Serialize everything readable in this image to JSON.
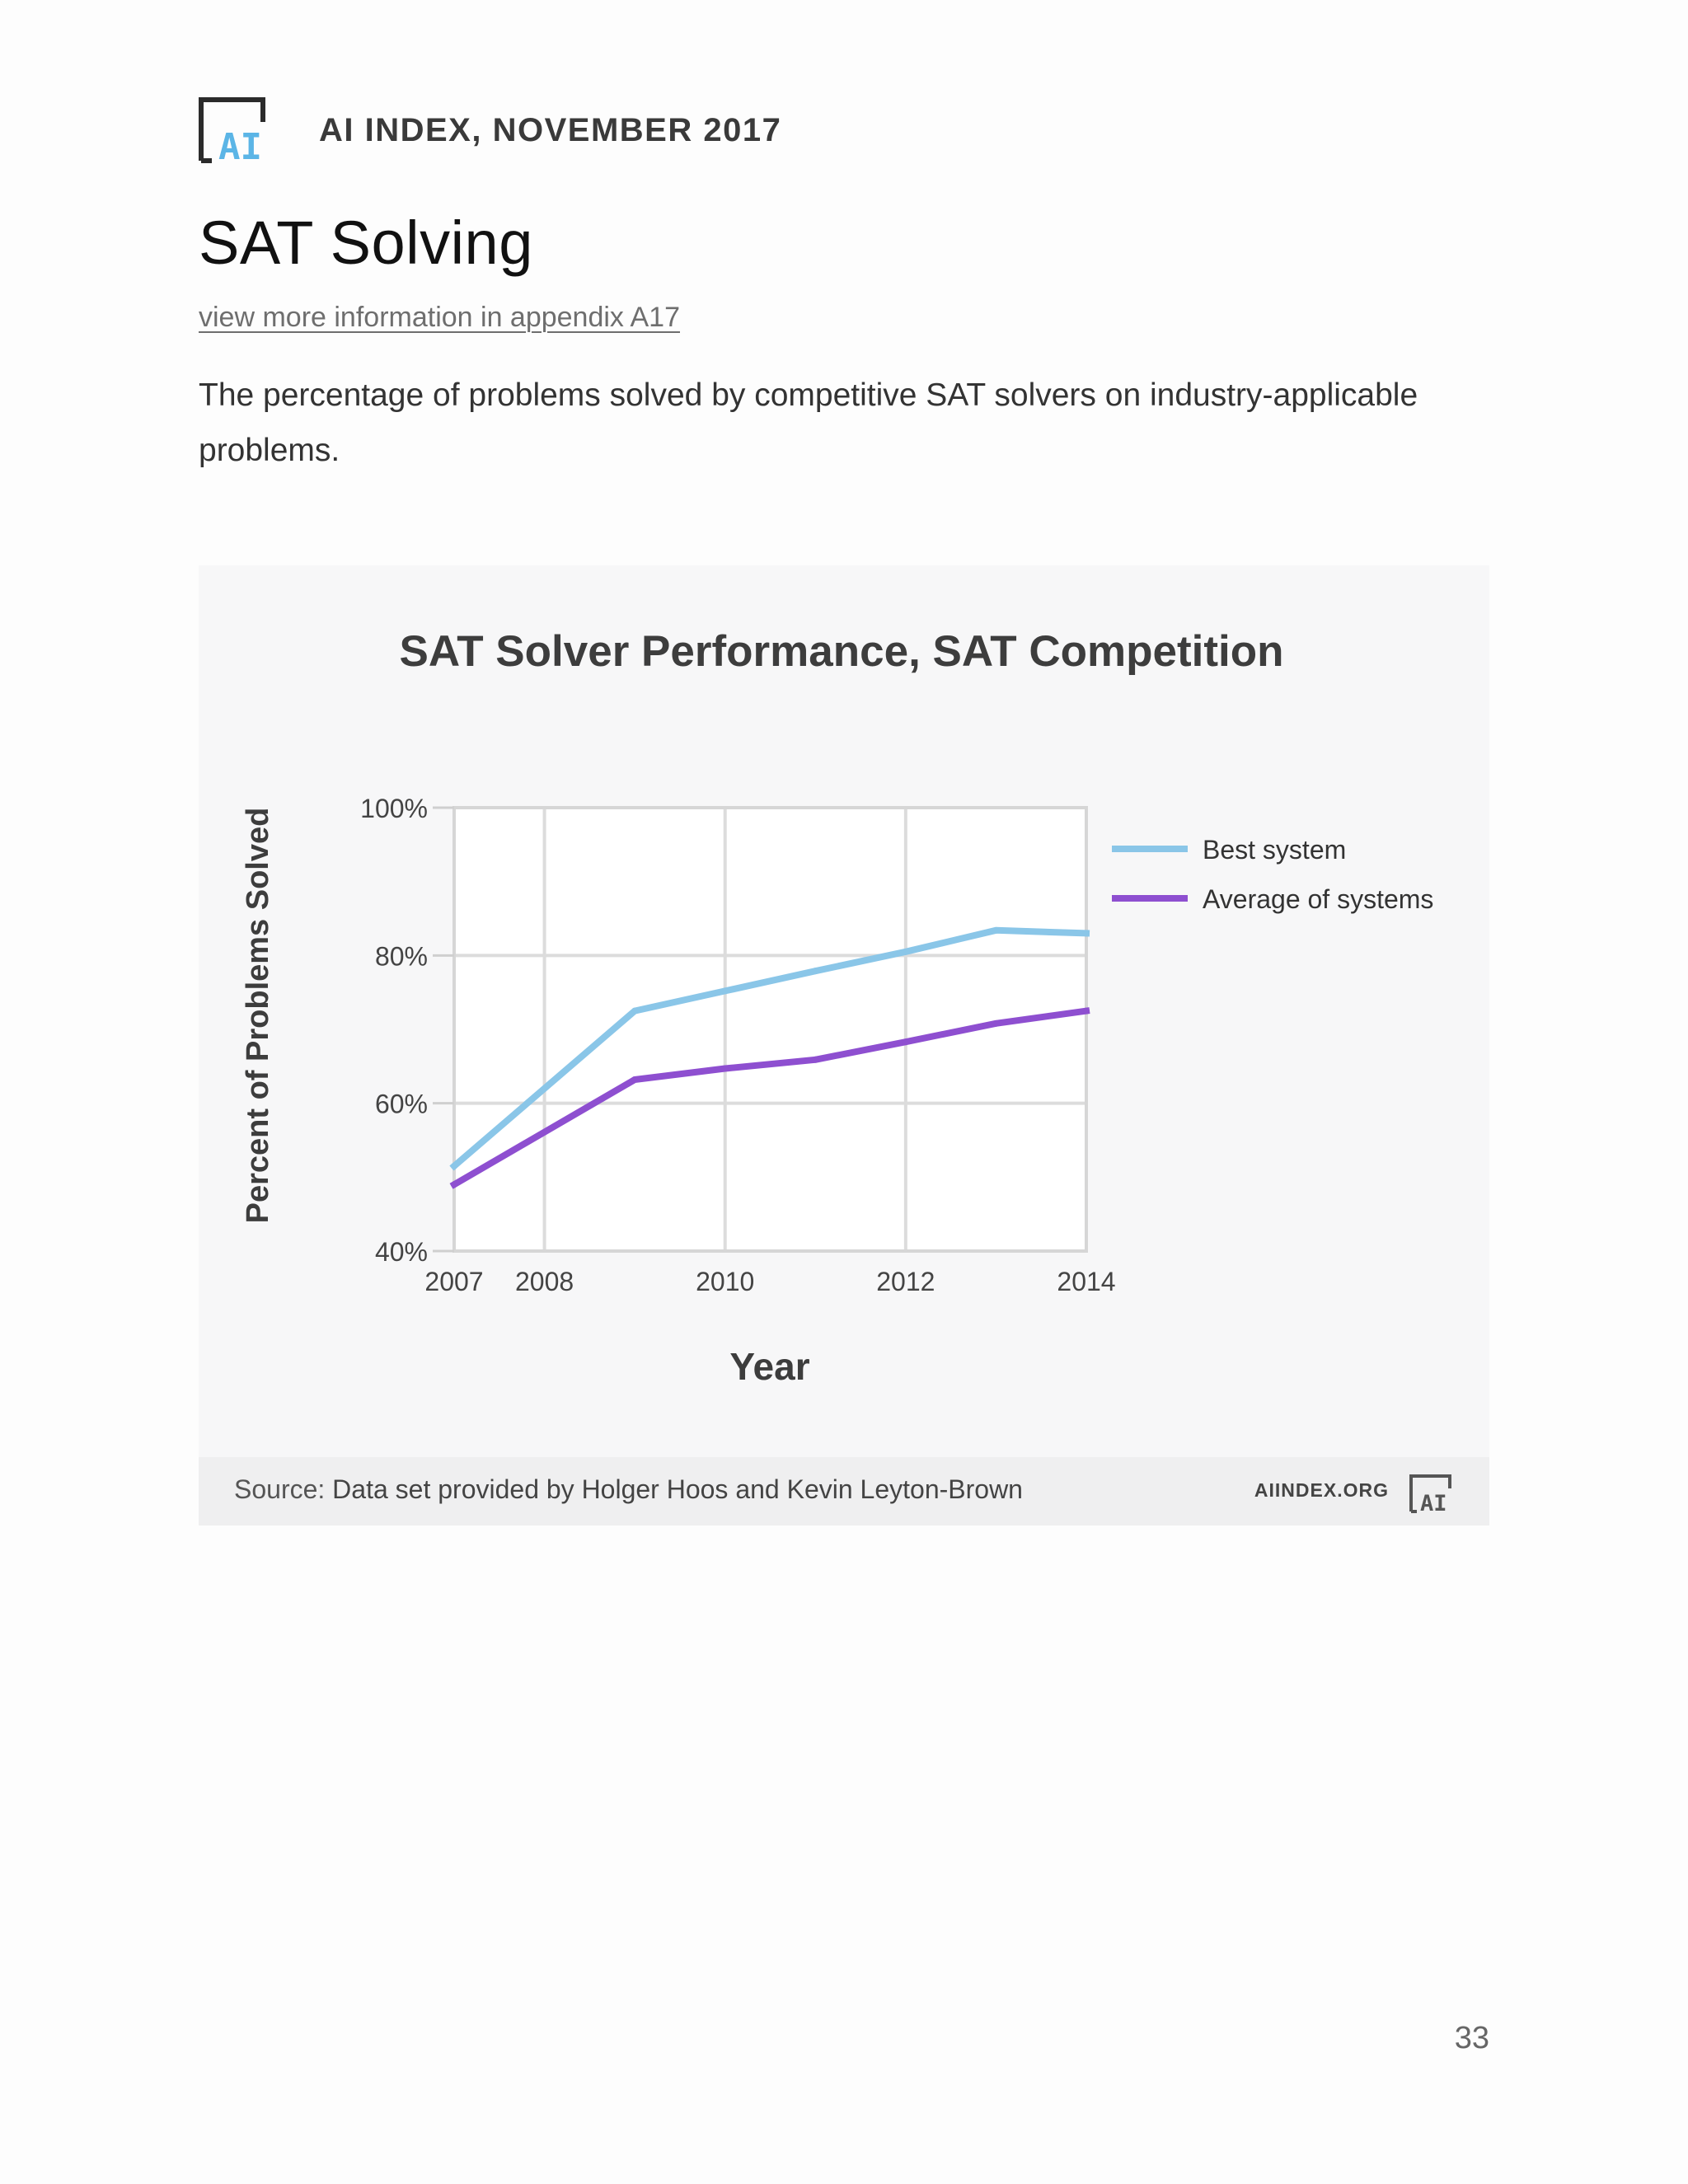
{
  "header": {
    "logo_text": "AI",
    "title": "AI INDEX, NOVEMBER 2017"
  },
  "page": {
    "title": "SAT Solving",
    "appendix_link": "view more information in appendix A17",
    "description": "The percentage of problems solved by competitive SAT solvers on industry-applicable problems.",
    "page_number": "33"
  },
  "source": {
    "prefix": "Source:",
    "text": "Data set provided by Holger Hoos and Kevin Leyton-Brown",
    "site": "AIINDEX.ORG",
    "logo_text": "AI"
  },
  "colors": {
    "best": "#8ac6e8",
    "average": "#8e4fd0",
    "logo_accent": "#5bb5e6"
  },
  "chart_data": {
    "type": "line",
    "title": "SAT Solver Performance, SAT Competition",
    "xlabel": "Year",
    "ylabel": "Percent of Problems Solved",
    "xlim": [
      2007,
      2014
    ],
    "ylim": [
      40,
      100
    ],
    "x_ticks": [
      2007,
      2008,
      2010,
      2012,
      2014
    ],
    "x_tick_labels": [
      "2007",
      "2008",
      "2010",
      "2012",
      "2014"
    ],
    "y_ticks": [
      40,
      60,
      80,
      100
    ],
    "y_tick_labels": [
      "40%",
      "60%",
      "80%",
      "100%"
    ],
    "grid": true,
    "legend_position": "right",
    "series": [
      {
        "name": "Best system",
        "color": "#8ac6e8",
        "x": [
          2007,
          2009,
          2010,
          2011,
          2012,
          2013,
          2014
        ],
        "values": [
          51.5,
          72.5,
          75.2,
          77.9,
          80.5,
          83.4,
          83.0
        ]
      },
      {
        "name": "Average of systems",
        "color": "#8e4fd0",
        "x": [
          2007,
          2009,
          2010,
          2011,
          2012,
          2013,
          2014
        ],
        "values": [
          49.0,
          63.2,
          64.7,
          65.9,
          68.3,
          70.8,
          72.5
        ]
      }
    ]
  }
}
